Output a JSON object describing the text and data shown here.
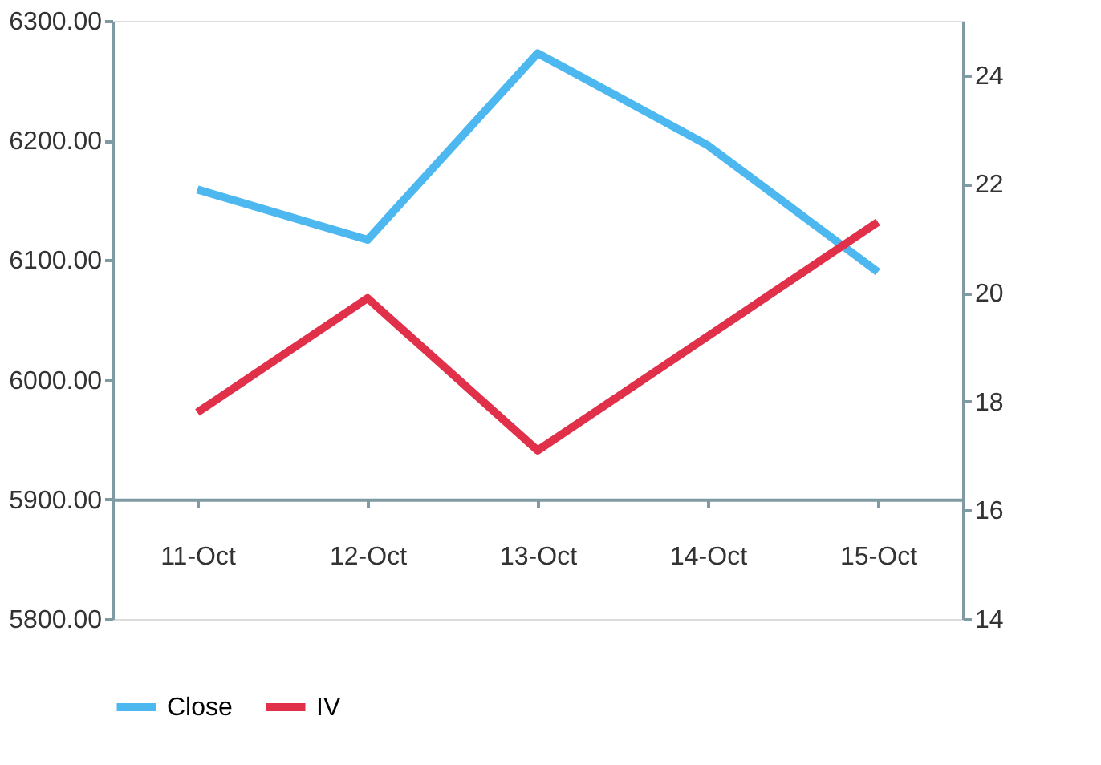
{
  "chart_data": {
    "type": "line",
    "categories": [
      "11-Oct",
      "12-Oct",
      "13-Oct",
      "14-Oct",
      "15-Oct"
    ],
    "series": [
      {
        "name": "Close",
        "color": "#4db8f0",
        "values": [
          6159,
          6117,
          6273,
          6196,
          6090
        ]
      },
      {
        "name": "IV",
        "color": "#e0304a",
        "axis": "y2",
        "values": [
          17.8,
          19.9,
          17.1,
          19.2,
          21.3
        ]
      }
    ],
    "ylim": [
      5800,
      6300
    ],
    "yticks": [
      {
        "value": 5800,
        "label": "5800.00"
      },
      {
        "value": 5900,
        "label": "5900.00"
      },
      {
        "value": 6000,
        "label": "6000.00"
      },
      {
        "value": 6100,
        "label": "6100.00"
      },
      {
        "value": 6200,
        "label": "6200.00"
      },
      {
        "value": 6300,
        "label": "6300.00"
      }
    ],
    "y2lim": [
      14,
      25
    ],
    "y2ticks": [
      14,
      16,
      18,
      20,
      22,
      24
    ],
    "grid": false,
    "legend": "bottom",
    "marker": "none",
    "line_style": "solid"
  }
}
